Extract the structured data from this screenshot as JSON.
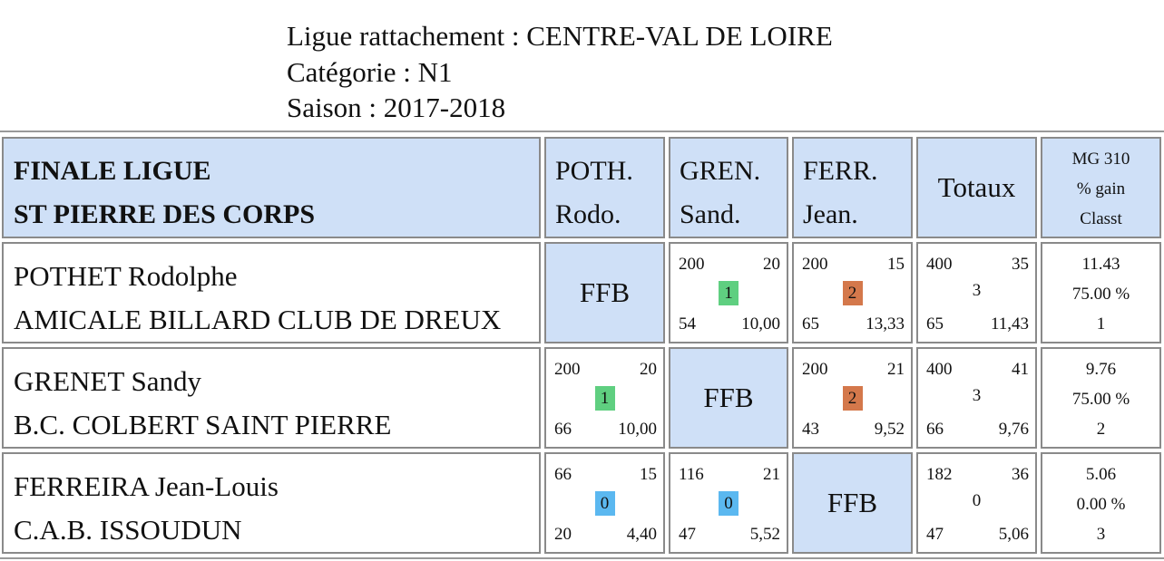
{
  "header": {
    "ligue": "Ligue rattachement : CENTRE-VAL DE LOIRE",
    "categorie": "Catégorie : N1",
    "saison": "Saison : 2017-2018"
  },
  "table": {
    "title_line1": "FINALE LIGUE",
    "title_line2": "ST PIERRE DES CORPS",
    "columns": [
      {
        "line1": "POTH.",
        "line2": "Rodo."
      },
      {
        "line1": "GREN.",
        "line2": "Sand."
      },
      {
        "line1": "FERR.",
        "line2": "Jean."
      }
    ],
    "totals_label": "Totaux",
    "mg_line1": "MG 310",
    "mg_line2": "% gain",
    "mg_line3": "Classt",
    "colors": {
      "header_bg": "#cfe0f7",
      "win": "#5fcf80",
      "loss": "#d4784b",
      "draw": "#5bb8f0"
    },
    "rows": [
      {
        "name": "POTHET Rodolphe",
        "club": "AMICALE BILLARD CLUB DE DREUX",
        "cells": [
          {
            "ffb": "FFB"
          },
          {
            "points": "200",
            "innings": "20",
            "match_points": "1",
            "result": "win",
            "serie": "54",
            "average": "10,00"
          },
          {
            "points": "200",
            "innings": "15",
            "match_points": "2",
            "result": "loss",
            "serie": "65",
            "average": "13,33"
          }
        ],
        "totals": {
          "points": "400",
          "innings": "35",
          "match_points": "3",
          "serie": "65",
          "average": "11,43"
        },
        "stats": {
          "mg": "11.43",
          "pct": "75.00 %",
          "rank": "1"
        }
      },
      {
        "name": "GRENET Sandy",
        "club": "B.C. COLBERT SAINT PIERRE",
        "cells": [
          {
            "points": "200",
            "innings": "20",
            "match_points": "1",
            "result": "win",
            "serie": "66",
            "average": "10,00"
          },
          {
            "ffb": "FFB"
          },
          {
            "points": "200",
            "innings": "21",
            "match_points": "2",
            "result": "loss",
            "serie": "43",
            "average": "9,52"
          }
        ],
        "totals": {
          "points": "400",
          "innings": "41",
          "match_points": "3",
          "serie": "66",
          "average": "9,76"
        },
        "stats": {
          "mg": "9.76",
          "pct": "75.00 %",
          "rank": "2"
        }
      },
      {
        "name": "FERREIRA Jean-Louis",
        "club": "C.A.B. ISSOUDUN",
        "cells": [
          {
            "points": "66",
            "innings": "15",
            "match_points": "0",
            "result": "draw",
            "serie": "20",
            "average": "4,40"
          },
          {
            "points": "116",
            "innings": "21",
            "match_points": "0",
            "result": "draw",
            "serie": "47",
            "average": "5,52"
          },
          {
            "ffb": "FFB"
          }
        ],
        "totals": {
          "points": "182",
          "innings": "36",
          "match_points": "0",
          "serie": "47",
          "average": "5,06"
        },
        "stats": {
          "mg": "5.06",
          "pct": "0.00 %",
          "rank": "3"
        }
      }
    ]
  }
}
